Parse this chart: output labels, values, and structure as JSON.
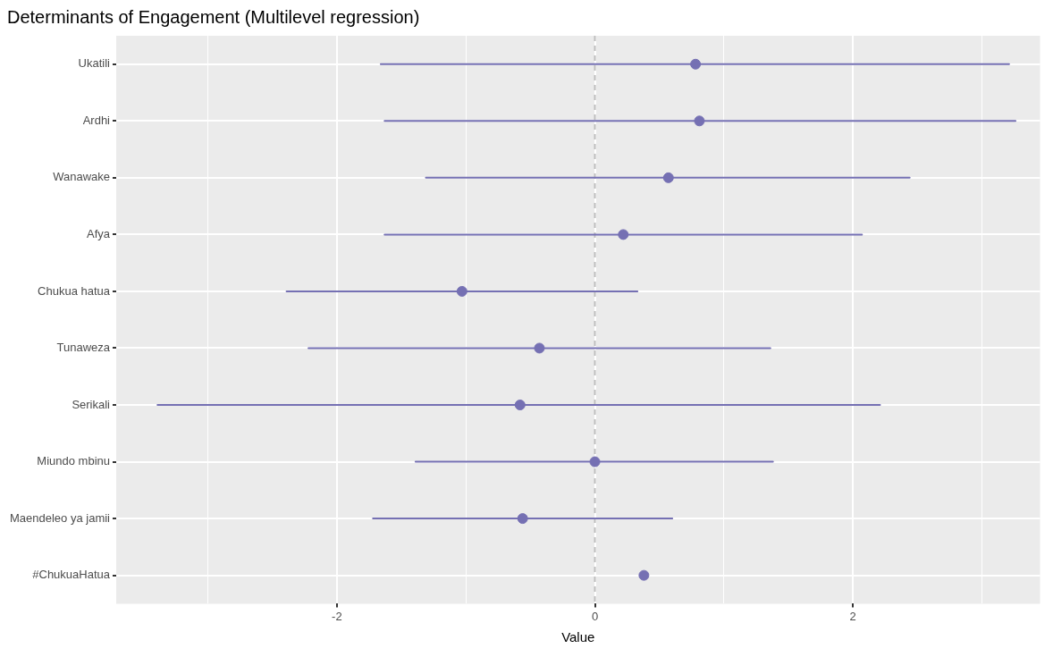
{
  "chart_data": {
    "type": "scatter",
    "title": "Determinants of Engagement (Multilevel regression)",
    "xlabel": "Value",
    "categories": [
      "Ukatili",
      "Ardhi",
      "Wanawake",
      "Afya",
      "Chukua hatua",
      "Tunaweza",
      "Serikali",
      "Miundo mbinu",
      "Maendeleo ya jamii",
      "#ChukuaHatua"
    ],
    "orientation": "horizontal",
    "series": [
      {
        "color": "#7570b3",
        "values": [
          0.78,
          0.81,
          0.57,
          0.22,
          -1.03,
          -0.43,
          -0.58,
          0.0,
          -0.56,
          0.38
        ],
        "errors": [
          [
            -1.66,
            3.21
          ],
          [
            -1.63,
            3.26
          ],
          [
            -1.31,
            2.44
          ],
          [
            -1.63,
            2.07
          ],
          [
            -2.39,
            0.33
          ],
          [
            -2.22,
            1.36
          ],
          [
            -3.39,
            2.21
          ],
          [
            -1.39,
            1.38
          ],
          [
            -1.72,
            0.6
          ],
          null
        ]
      }
    ],
    "xlim": [
      -3.71,
      3.45
    ],
    "xticks": [
      {
        "value": -3,
        "label": null
      },
      -2,
      {
        "value": -1,
        "label": null
      },
      0,
      {
        "value": 1,
        "label": null
      },
      2,
      {
        "value": 3,
        "label": null
      }
    ],
    "ref_lines": [
      {
        "axis": "x",
        "value": 0,
        "color": "#bdbdbd",
        "line_style": "dashed"
      }
    ],
    "grid": true,
    "legend": false,
    "marker": "circle"
  }
}
